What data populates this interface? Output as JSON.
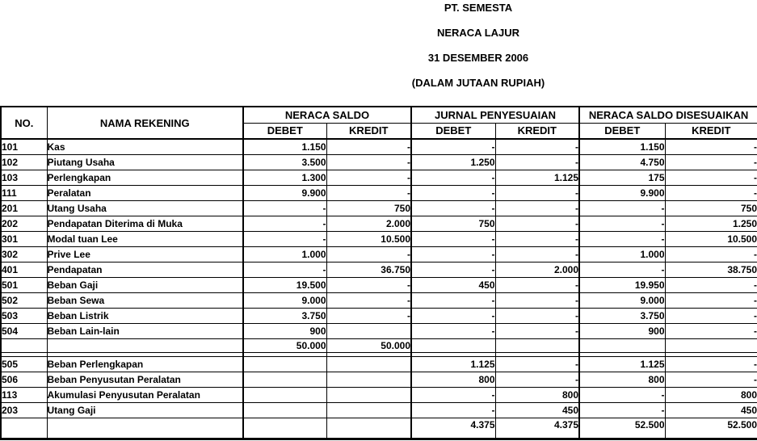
{
  "title_block": {
    "company": "PT. SEMESTA",
    "report": "NERACA LAJUR",
    "date": "31 DESEMBER 2006",
    "unit": "(DALAM JUTAAN RUPIAH)"
  },
  "colors": {
    "text": "#000000",
    "background": "#ffffff",
    "border": "#000000"
  },
  "table": {
    "headers": {
      "no": "NO.",
      "account": "NAMA REKENING",
      "groups": [
        {
          "label": "NERACA SALDO",
          "debet": "DEBET",
          "kredit": "KREDIT"
        },
        {
          "label": "JURNAL PENYESUAIAN",
          "debet": "DEBET",
          "kredit": "KREDIT"
        },
        {
          "label": "NERACA SALDO DISESUAIKAN",
          "debet": "DEBET",
          "kredit": "KREDIT"
        }
      ]
    },
    "rows": [
      {
        "kind": "data",
        "cells": [
          "101",
          "Kas",
          "1.150",
          "-",
          "-",
          "-",
          "1.150",
          "-"
        ]
      },
      {
        "kind": "data",
        "cells": [
          "102",
          "Piutang Usaha",
          "3.500",
          "-",
          "1.250",
          "-",
          "4.750",
          "-"
        ]
      },
      {
        "kind": "data",
        "cells": [
          "103",
          "Perlengkapan",
          "1.300",
          "-",
          "-",
          "1.125",
          "175",
          "-"
        ]
      },
      {
        "kind": "data",
        "cells": [
          "111",
          "Peralatan",
          "9.900",
          "-",
          "-",
          "-",
          "9.900",
          "-"
        ]
      },
      {
        "kind": "data",
        "cells": [
          "201",
          "Utang Usaha",
          "-",
          "750",
          "-",
          "-",
          "-",
          "750"
        ]
      },
      {
        "kind": "data",
        "cells": [
          "202",
          "Pendapatan Diterima di Muka",
          "-",
          "2.000",
          "750",
          "-",
          "-",
          "1.250"
        ]
      },
      {
        "kind": "data",
        "cells": [
          "301",
          "Modal tuan Lee",
          "-",
          "10.500",
          "-",
          "-",
          "-",
          "10.500"
        ]
      },
      {
        "kind": "data",
        "cells": [
          "302",
          "Prive Lee",
          "1.000",
          "-",
          "-",
          "-",
          "1.000",
          "-"
        ]
      },
      {
        "kind": "data",
        "cells": [
          "401",
          "Pendapatan",
          "-",
          "36.750",
          "-",
          "2.000",
          "-",
          "38.750"
        ]
      },
      {
        "kind": "data",
        "cells": [
          "501",
          "Beban Gaji",
          "19.500",
          "-",
          "450",
          "-",
          "19.950",
          "-"
        ]
      },
      {
        "kind": "data",
        "cells": [
          "502",
          "Beban Sewa",
          "9.000",
          "-",
          "-",
          "-",
          "9.000",
          "-"
        ]
      },
      {
        "kind": "data",
        "cells": [
          "503",
          "Beban Listrik",
          "3.750",
          "-",
          "-",
          "-",
          "3.750",
          "-"
        ]
      },
      {
        "kind": "data",
        "cells": [
          "504",
          "Beban Lain-lain",
          "900",
          "",
          "-",
          "-",
          "900",
          "-"
        ]
      },
      {
        "kind": "subtotal",
        "cells": [
          "",
          "",
          "50.000",
          "50.000",
          "",
          "",
          "",
          ""
        ]
      },
      {
        "kind": "spacer",
        "cells": [
          "",
          "",
          "",
          "",
          "",
          "",
          "",
          ""
        ]
      },
      {
        "kind": "data",
        "cells": [
          "505",
          "Beban Perlengkapan",
          "",
          "",
          "1.125",
          "-",
          "1.125",
          "-"
        ]
      },
      {
        "kind": "data",
        "cells": [
          "506",
          "Beban Penyusutan Peralatan",
          "",
          "",
          "800",
          "-",
          "800",
          "-"
        ]
      },
      {
        "kind": "data",
        "cells": [
          "113",
          "Akumulasi Penyusutan Peralatan",
          "",
          "",
          "-",
          "800",
          "-",
          "800"
        ]
      },
      {
        "kind": "data",
        "cells": [
          "203",
          "Utang Gaji",
          "",
          "",
          "-",
          "450",
          "-",
          "450"
        ]
      },
      {
        "kind": "total",
        "cells": [
          "",
          "",
          "",
          "",
          "4.375",
          "4.375",
          "52.500",
          "52.500"
        ]
      }
    ]
  }
}
